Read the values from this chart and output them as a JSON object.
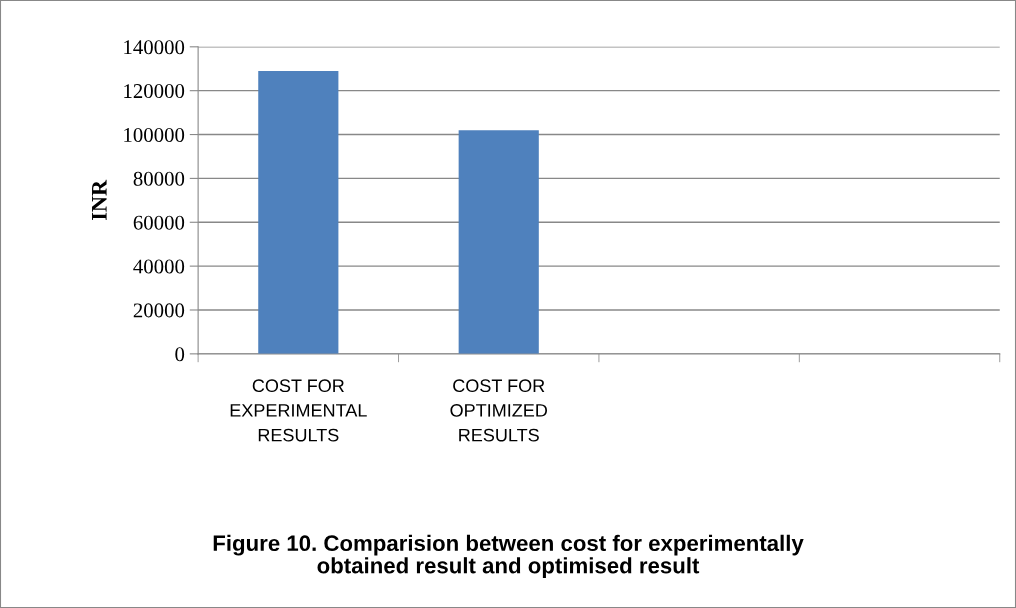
{
  "chart_data": {
    "type": "bar",
    "title": "Figure 10. Comparision between cost for experimentally\nobtained result and optimised result",
    "ylabel": "INR",
    "categories": [
      "COST FOR\nEXPERIMENTAL\nRESULTS",
      "COST FOR\nOPTIMIZED\nRESULTS",
      null,
      null
    ],
    "series": [
      {
        "color": "#4f81bd",
        "values": [
          129000,
          102000,
          null,
          null
        ]
      }
    ],
    "ylim": [
      0,
      140000
    ],
    "yticks": [
      0,
      20000,
      40000,
      60000,
      80000,
      100000,
      120000,
      140000
    ],
    "grid": "y",
    "legend": false
  }
}
